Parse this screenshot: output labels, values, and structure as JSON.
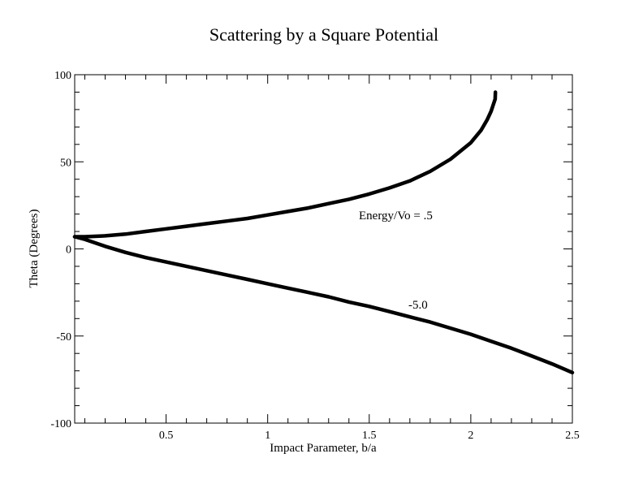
{
  "chart_data": {
    "type": "line",
    "title": "Scattering by a Square Potential",
    "xlabel": "Impact Parameter, b/a",
    "ylabel": "Theta (Degrees)",
    "xlim": [
      0.05,
      2.5
    ],
    "ylim": [
      -100,
      100
    ],
    "x_major_ticks": [
      0.5,
      1,
      1.5,
      2,
      2.5
    ],
    "x_minor_ticks": [
      0.1,
      0.2,
      0.3,
      0.4,
      0.6,
      0.7,
      0.8,
      0.9,
      1.1,
      1.2,
      1.3,
      1.4,
      1.6,
      1.7,
      1.8,
      1.9,
      2.1,
      2.2,
      2.3,
      2.4
    ],
    "y_major_ticks": [
      -100,
      -50,
      0,
      50,
      100
    ],
    "y_minor_ticks": [
      -90,
      -80,
      -70,
      -60,
      -40,
      -30,
      -20,
      -10,
      10,
      20,
      30,
      40,
      60,
      70,
      80,
      90
    ],
    "x_tick_labels": [
      "0.5",
      "1",
      "1.5",
      "2",
      "2.5"
    ],
    "y_tick_labels": [
      "-100",
      "-50",
      "0",
      "50",
      "100"
    ],
    "grid": false,
    "legend": "none",
    "color": "#000000",
    "series": [
      {
        "annotation": "Energy/Vo = .5",
        "x": [
          0.05,
          0.1,
          0.2,
          0.3,
          0.4,
          0.5,
          0.6,
          0.7,
          0.8,
          0.9,
          1.0,
          1.1,
          1.2,
          1.3,
          1.4,
          1.5,
          1.6,
          1.7,
          1.8,
          1.9,
          2.0,
          2.05,
          2.08,
          2.1,
          2.12,
          2.121
        ],
        "y": [
          7,
          7,
          7.5,
          8.5,
          10,
          11.5,
          13,
          14.5,
          16,
          17.5,
          19.5,
          21.5,
          23.5,
          26,
          28.5,
          31.5,
          35,
          39,
          44.5,
          51.5,
          61,
          68,
          74,
          79,
          86,
          90
        ]
      },
      {
        "annotation": "-5.0",
        "x": [
          0.05,
          0.1,
          0.2,
          0.3,
          0.4,
          0.5,
          0.6,
          0.7,
          0.8,
          0.9,
          1.0,
          1.1,
          1.2,
          1.3,
          1.4,
          1.5,
          1.6,
          1.7,
          1.8,
          1.9,
          2.0,
          2.1,
          2.2,
          2.3,
          2.4,
          2.5
        ],
        "y": [
          7,
          5.5,
          1.5,
          -2,
          -5,
          -7.5,
          -10,
          -12.5,
          -15,
          -17.5,
          -20,
          -22.5,
          -25,
          -27.5,
          -30.5,
          -33,
          -36,
          -39,
          -42,
          -45.5,
          -49,
          -53,
          -57,
          -61.5,
          -66,
          -71
        ]
      }
    ]
  }
}
